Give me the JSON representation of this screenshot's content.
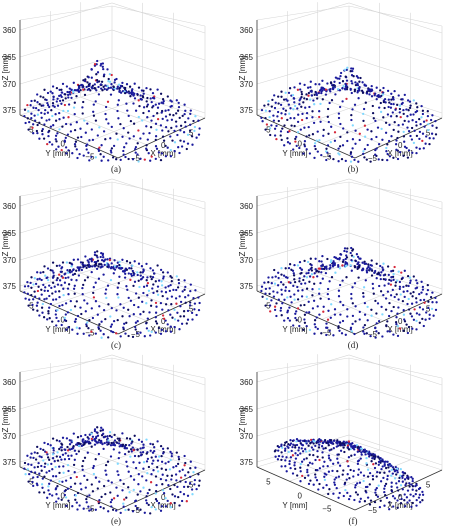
{
  "chart_data": [
    {
      "type": "scatter",
      "panel_label": "(a)",
      "zlabel": "Z [mm]",
      "ylabel": "Y [mm]",
      "xlabel": "X [mm]",
      "z_ticks": [
        "360",
        "365",
        "370",
        "375"
      ],
      "y_ticks": [
        "5",
        "0",
        "−5"
      ],
      "x_ticks": [
        "−5",
        "0",
        "5"
      ],
      "zlim": [
        375,
        360
      ],
      "ylim": [
        -5,
        5
      ],
      "xlim": [
        -5,
        5
      ],
      "z_axis_reversed": true,
      "grid": true,
      "surface": {
        "base_z": 375,
        "apex_z": 363,
        "base_radius": 9,
        "apex_x": -1,
        "apex_y": 1
      }
    },
    {
      "type": "scatter",
      "panel_label": "(b)",
      "zlabel": "Z [mm]",
      "ylabel": "Y [mm]",
      "xlabel": "X [mm]",
      "z_ticks": [
        "360",
        "365",
        "370",
        "375"
      ],
      "y_ticks": [
        "5",
        "0",
        "−5"
      ],
      "x_ticks": [
        "−5",
        "0",
        "5"
      ],
      "zlim": [
        375,
        360
      ],
      "ylim": [
        -5,
        5
      ],
      "xlim": [
        -5,
        5
      ],
      "z_axis_reversed": true,
      "grid": true,
      "surface": {
        "base_z": 375,
        "apex_z": 364,
        "base_radius": 9,
        "apex_x": 0,
        "apex_y": 0
      }
    },
    {
      "type": "scatter",
      "panel_label": "(c)",
      "zlabel": "Z [mm]",
      "ylabel": "Y [mm]",
      "xlabel": "X [mm]",
      "z_ticks": [
        "360",
        "365",
        "370",
        "375"
      ],
      "y_ticks": [
        "5",
        "0",
        "−5"
      ],
      "x_ticks": [
        "−5",
        "0",
        "5"
      ],
      "zlim": [
        375,
        360
      ],
      "ylim": [
        -5,
        5
      ],
      "xlim": [
        -5,
        5
      ],
      "z_axis_reversed": true,
      "grid": true,
      "surface": {
        "base_z": 375,
        "apex_z": 366,
        "base_radius": 9,
        "apex_x": -1,
        "apex_y": 1
      }
    },
    {
      "type": "scatter",
      "panel_label": "(d)",
      "zlabel": "Z [mm]",
      "ylabel": "Y [mm]",
      "xlabel": "X [mm]",
      "z_ticks": [
        "360",
        "365",
        "370",
        "375"
      ],
      "y_ticks": [
        "5",
        "0",
        "−5"
      ],
      "x_ticks": [
        "−5",
        "0",
        "5"
      ],
      "zlim": [
        375,
        360
      ],
      "ylim": [
        -5,
        5
      ],
      "xlim": [
        -5,
        5
      ],
      "z_axis_reversed": true,
      "grid": true,
      "surface": {
        "base_z": 375,
        "apex_z": 365,
        "base_radius": 9,
        "apex_x": 0,
        "apex_y": 0
      }
    },
    {
      "type": "scatter",
      "panel_label": "(e)",
      "zlabel": "Z [mm]",
      "ylabel": "Y [mm]",
      "xlabel": "X [mm]",
      "z_ticks": [
        "360",
        "365",
        "370",
        "375"
      ],
      "y_ticks": [
        "5",
        "0",
        "−5"
      ],
      "x_ticks": [
        "−5",
        "0",
        "5"
      ],
      "zlim": [
        375,
        360
      ],
      "ylim": [
        -5,
        5
      ],
      "xlim": [
        -5,
        5
      ],
      "z_axis_reversed": true,
      "grid": true,
      "surface": {
        "base_z": 375,
        "apex_z": 366,
        "base_radius": 9,
        "apex_x": -1,
        "apex_y": 1
      }
    },
    {
      "type": "scatter",
      "panel_label": "(f)",
      "zlabel": "Z [mm]",
      "ylabel": "Y [mm]",
      "xlabel": "X [mm]",
      "z_ticks": [
        "360",
        "365",
        "370",
        "375"
      ],
      "y_ticks": [
        "5",
        "0",
        "−5"
      ],
      "x_ticks": [
        "−5",
        "0",
        "5"
      ],
      "zlim": [
        375,
        360
      ],
      "ylim": [
        -5,
        5
      ],
      "xlim": [
        -5,
        5
      ],
      "z_axis_reversed": true,
      "grid": true,
      "surface": {
        "base_z": 375,
        "apex_z": 369,
        "base_radius": 9,
        "apex_x": 0,
        "apex_y": 0
      }
    }
  ],
  "colors": {
    "points_primary": "#1a1a9c",
    "points_dark": "#0c0c5e",
    "points_light": "#7fd9ff",
    "points_accent": "#d6283a",
    "grid": "#d6d6d6",
    "axis": "#333333"
  }
}
